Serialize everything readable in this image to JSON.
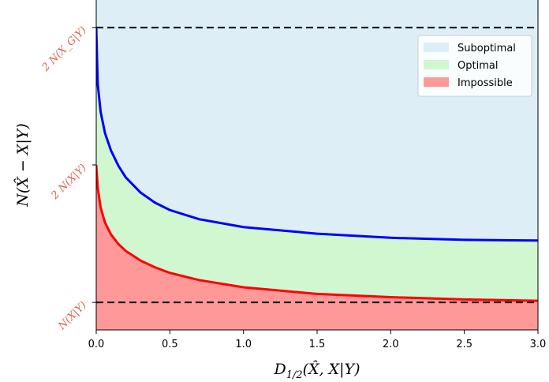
{
  "chart_data": {
    "type": "area",
    "xlabel": "D_{1/2}(X̂, X|Y)",
    "xlabel_main": "D",
    "xlabel_sub": "1/2",
    "xlabel_args": "(X̂, X|Y)",
    "ylabel": "N(X̂ − X|Y)",
    "xlim": [
      0,
      3
    ],
    "xticks": [
      {
        "value": 0.0,
        "label": "0.0"
      },
      {
        "value": 0.5,
        "label": "0.5"
      },
      {
        "value": 1.0,
        "label": "1.0"
      },
      {
        "value": 1.5,
        "label": "1.5"
      },
      {
        "value": 2.0,
        "label": "2.0"
      },
      {
        "value": 2.5,
        "label": "2.5"
      },
      {
        "value": 3.0,
        "label": "3.0"
      }
    ],
    "ylim": [
      0.8,
      3.2
    ],
    "yticks": [
      {
        "value": 1,
        "label": "N(X|Y)"
      },
      {
        "value": 2,
        "label": "2 N(X|Y)"
      },
      {
        "value": 3,
        "label": "2 N(X_G|Y)"
      }
    ],
    "hlines": [
      {
        "y": 1,
        "style": "dashed",
        "color": "#000000"
      },
      {
        "y": 3,
        "style": "dashed",
        "color": "#000000"
      }
    ],
    "series": [
      {
        "name": "Impossible",
        "color": "#ff0000",
        "fill": "#ff9999",
        "x": [
          0,
          0.01,
          0.03,
          0.06,
          0.1,
          0.15,
          0.2,
          0.3,
          0.4,
          0.5,
          0.7,
          1.0,
          1.5,
          2.0,
          2.5,
          3.0
        ],
        "y": [
          2.0,
          1.835,
          1.69,
          1.58,
          1.495,
          1.425,
          1.375,
          1.305,
          1.255,
          1.215,
          1.162,
          1.11,
          1.062,
          1.038,
          1.022,
          1.012
        ]
      },
      {
        "name": "Optimal",
        "color": "#0000ff",
        "fill": "#d1f7d1",
        "x": [
          0,
          0.01,
          0.03,
          0.06,
          0.1,
          0.15,
          0.2,
          0.3,
          0.4,
          0.5,
          0.7,
          1.0,
          1.5,
          2.0,
          2.5,
          3.0
        ],
        "y": [
          3.0,
          2.59,
          2.385,
          2.23,
          2.105,
          1.995,
          1.91,
          1.8,
          1.725,
          1.672,
          1.605,
          1.548,
          1.5,
          1.47,
          1.455,
          1.45
        ]
      },
      {
        "name": "Suboptimal",
        "fill": "#ddeef6"
      }
    ],
    "legend": {
      "position": "upper-right",
      "entries": [
        {
          "label": "Suboptimal",
          "color": "#ddeef6"
        },
        {
          "label": "Optimal",
          "color": "#d1f7d1"
        },
        {
          "label": "Impossible",
          "color": "#ff9999"
        }
      ]
    }
  }
}
